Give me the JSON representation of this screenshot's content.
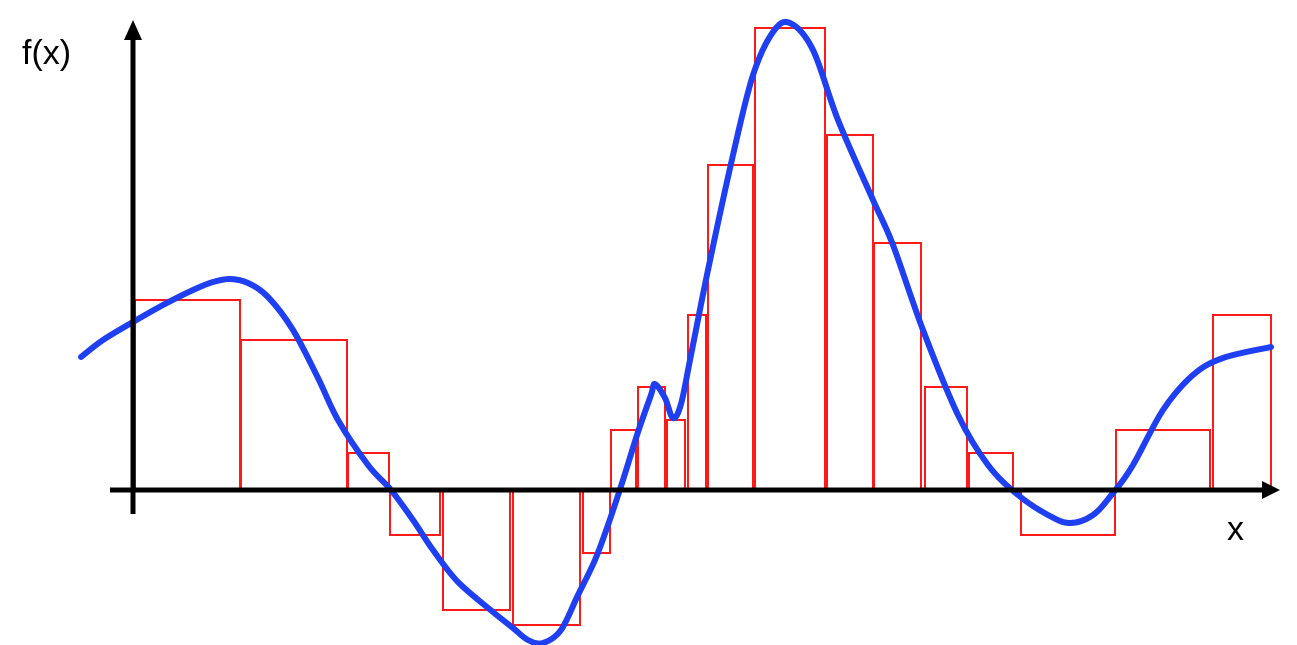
{
  "labels": {
    "y_axis": "f(x)",
    "x_axis": "x"
  },
  "colors": {
    "curve": "#1f3ff2",
    "rectangles": "#ff1a1a",
    "axes": "#000000",
    "background": "#ffffff"
  },
  "chart_data": {
    "type": "area",
    "title": "",
    "xlabel": "x",
    "ylabel": "f(x)",
    "xlim": [
      0,
      1140
    ],
    "ylim": [
      -155,
      465
    ],
    "grid": false,
    "legend": "none",
    "curve_points": [
      [
        -52,
        133
      ],
      [
        -30,
        150
      ],
      [
        0,
        168
      ],
      [
        30,
        185
      ],
      [
        60,
        200
      ],
      [
        80,
        208
      ],
      [
        97,
        211
      ],
      [
        115,
        207
      ],
      [
        135,
        193
      ],
      [
        160,
        160
      ],
      [
        185,
        112
      ],
      [
        205,
        70
      ],
      [
        235,
        25
      ],
      [
        258,
        0
      ],
      [
        280,
        -30
      ],
      [
        300,
        -60
      ],
      [
        325,
        -92
      ],
      [
        360,
        -122
      ],
      [
        380,
        -138
      ],
      [
        395,
        -150
      ],
      [
        410,
        -153
      ],
      [
        428,
        -140
      ],
      [
        445,
        -105
      ],
      [
        462,
        -70
      ],
      [
        475,
        -35
      ],
      [
        490,
        10
      ],
      [
        505,
        58
      ],
      [
        518,
        95
      ],
      [
        522,
        106
      ],
      [
        532,
        92
      ],
      [
        540,
        72
      ],
      [
        548,
        86
      ],
      [
        558,
        135
      ],
      [
        575,
        220
      ],
      [
        600,
        335
      ],
      [
        620,
        415
      ],
      [
        640,
        458
      ],
      [
        657,
        467
      ],
      [
        680,
        440
      ],
      [
        705,
        370
      ],
      [
        740,
        290
      ],
      [
        760,
        245
      ],
      [
        790,
        160
      ],
      [
        825,
        75
      ],
      [
        855,
        25
      ],
      [
        885,
        -5
      ],
      [
        915,
        -25
      ],
      [
        937,
        -33
      ],
      [
        960,
        -25
      ],
      [
        980,
        -3
      ],
      [
        1000,
        25
      ],
      [
        1030,
        80
      ],
      [
        1060,
        115
      ],
      [
        1090,
        132
      ],
      [
        1138,
        143
      ]
    ],
    "rectangles": [
      {
        "x0": 2,
        "x1": 107,
        "height": 190
      },
      {
        "x0": 108,
        "x1": 214,
        "height": 150
      },
      {
        "x0": 215,
        "x1": 256,
        "height": 37
      },
      {
        "x0": 257,
        "x1": 307,
        "height": -45
      },
      {
        "x0": 310,
        "x1": 377,
        "height": -120
      },
      {
        "x0": 380,
        "x1": 447,
        "height": -135
      },
      {
        "x0": 450,
        "x1": 477,
        "height": -63
      },
      {
        "x0": 478,
        "x1": 503,
        "height": 60
      },
      {
        "x0": 505,
        "x1": 532,
        "height": 103
      },
      {
        "x0": 534,
        "x1": 552,
        "height": 70
      },
      {
        "x0": 555,
        "x1": 573,
        "height": 175
      },
      {
        "x0": 575,
        "x1": 620,
        "height": 325
      },
      {
        "x0": 622,
        "x1": 692,
        "height": 462
      },
      {
        "x0": 694,
        "x1": 740,
        "height": 355
      },
      {
        "x0": 741,
        "x1": 788,
        "height": 247
      },
      {
        "x0": 792,
        "x1": 834,
        "height": 103
      },
      {
        "x0": 836,
        "x1": 880,
        "height": 37
      },
      {
        "x0": 888,
        "x1": 982,
        "height": -45
      },
      {
        "x0": 983,
        "x1": 1077,
        "height": 60
      },
      {
        "x0": 1080,
        "x1": 1138,
        "height": 175
      }
    ]
  }
}
